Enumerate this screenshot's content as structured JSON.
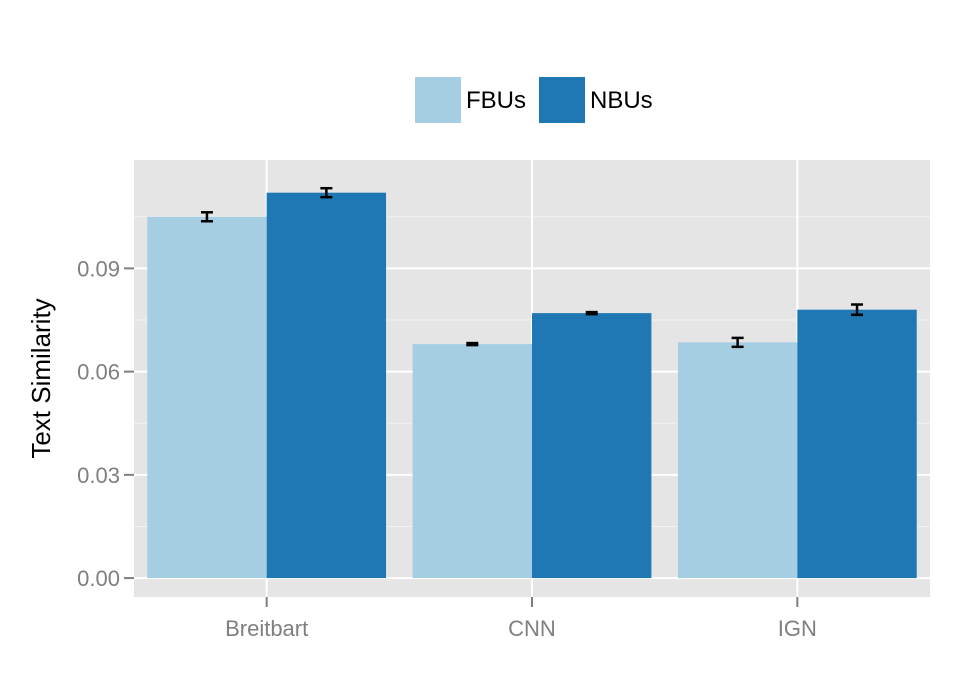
{
  "chart_data": {
    "type": "bar",
    "title": "",
    "xlabel": "",
    "ylabel": "Text Similarity",
    "categories": [
      "Breitbart",
      "CNN",
      "IGN"
    ],
    "ylim": [
      -0.0055,
      0.1215
    ],
    "yticks": [
      0.0,
      0.03,
      0.06,
      0.09
    ],
    "ytick_labels": [
      "0.00",
      "0.03",
      "0.06",
      "0.09"
    ],
    "grid": true,
    "legend_position": "top",
    "series": [
      {
        "name": "FBUs",
        "color": "#a6cee3",
        "values": [
          0.105,
          0.068,
          0.0685
        ],
        "error": [
          0.0013,
          0.0003,
          0.0013
        ]
      },
      {
        "name": "NBUs",
        "color": "#1f78b4",
        "values": [
          0.112,
          0.077,
          0.078
        ],
        "error": [
          0.0013,
          0.0003,
          0.0015
        ]
      }
    ]
  },
  "colors": {
    "panel_background": "#e5e5e5",
    "grid_major": "#ffffff",
    "grid_minor": "#f2f2f2",
    "error_bar": "#000000",
    "tick_label": "#7f7f7f"
  }
}
